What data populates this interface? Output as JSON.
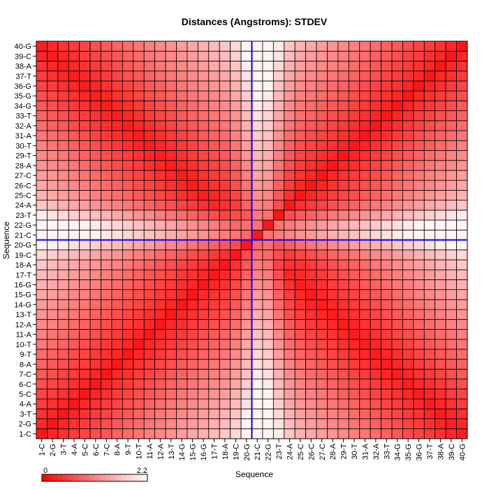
{
  "chart_data": {
    "type": "heatmap",
    "title": "Distances (Angstroms):  STDEV",
    "xlabel": "Sequence",
    "ylabel": "Sequence",
    "labels": [
      "1-C",
      "2-G",
      "3-T",
      "4-A",
      "5-C",
      "6-C",
      "7-C",
      "8-A",
      "9-T",
      "10-T",
      "11-A",
      "12-A",
      "13-T",
      "14-G",
      "15-G",
      "16-G",
      "17-T",
      "18-A",
      "19-C",
      "20-G",
      "21-C",
      "22-G",
      "23-T",
      "24-A",
      "25-C",
      "26-C",
      "27-C",
      "28-A",
      "29-T",
      "30-T",
      "31-A",
      "32-A",
      "33-T",
      "34-G",
      "35-G",
      "36-G",
      "37-T",
      "38-A",
      "39-C",
      "40-G"
    ],
    "value_range": [
      0,
      2.2
    ],
    "colorbar": {
      "min_label": "0",
      "max_label": "2.2",
      "low_color": "#ff0000",
      "high_color": "#ffffff"
    },
    "crosshair": {
      "x": "20.5",
      "y": "20.5",
      "color": "#0000ff"
    },
    "diagonal_value": 0.2,
    "note_values": "Symmetric matrix, values estimated: low (~0.2-0.5) near main diagonal and anti-diagonal, higher (~1.0-1.6) between, highest (~2.0) around indices 20-24."
  }
}
